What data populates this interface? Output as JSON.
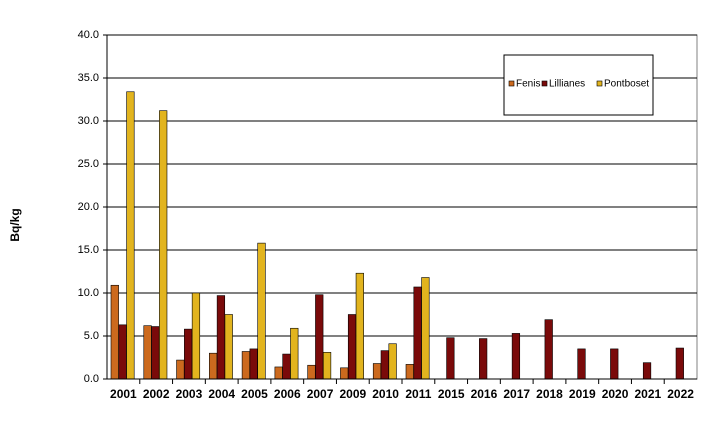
{
  "chart_data": {
    "type": "bar",
    "y_label": "Bq/kg",
    "categories": [
      "2001",
      "2002",
      "2003",
      "2004",
      "2005",
      "2006",
      "2007",
      "2009",
      "2010",
      "2011",
      "2015",
      "2016",
      "2017",
      "2018",
      "2019",
      "2020",
      "2021",
      "2022"
    ],
    "series": [
      {
        "name": "Fenis",
        "color": "#cc6a1e",
        "values": [
          10.9,
          6.2,
          2.2,
          3.0,
          3.2,
          1.4,
          1.6,
          1.3,
          1.8,
          1.7,
          null,
          null,
          null,
          null,
          null,
          null,
          null,
          null
        ]
      },
      {
        "name": "Lillianes",
        "color": "#7a0a0a",
        "values": [
          6.3,
          6.1,
          5.8,
          9.7,
          3.5,
          2.9,
          9.8,
          7.5,
          3.3,
          10.7,
          4.8,
          4.7,
          5.3,
          6.9,
          3.5,
          3.5,
          1.9,
          3.6
        ]
      },
      {
        "name": "Pontboset",
        "color": "#e2b41e",
        "values": [
          33.4,
          31.2,
          10.0,
          7.5,
          15.8,
          5.9,
          3.1,
          12.3,
          4.1,
          11.8,
          null,
          null,
          null,
          null,
          null,
          null,
          null,
          null
        ]
      }
    ],
    "ylim": [
      0,
      40
    ],
    "yticks": [
      {
        "value": 0,
        "label": "0.0"
      },
      {
        "value": 5,
        "label": "5.0"
      },
      {
        "value": 10,
        "label": "10.0"
      },
      {
        "value": 15,
        "label": "15.0"
      },
      {
        "value": 20,
        "label": "20.0"
      },
      {
        "value": 25,
        "label": "25.0"
      },
      {
        "value": 30,
        "label": "30.0"
      },
      {
        "value": 35,
        "label": "35.0"
      },
      {
        "value": 40,
        "label": "40.0"
      }
    ],
    "grid": true
  }
}
